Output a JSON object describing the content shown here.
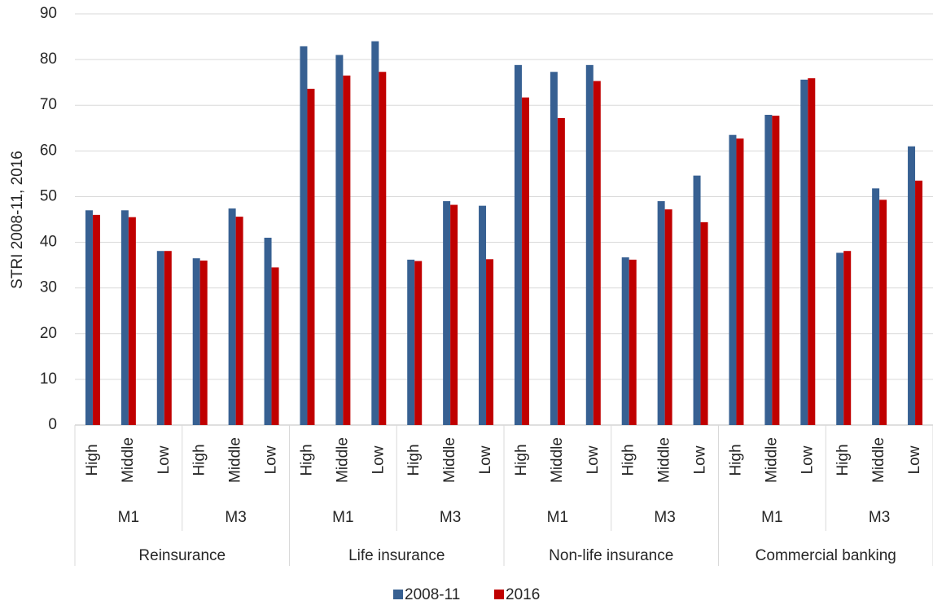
{
  "chart_data": {
    "type": "bar",
    "y_label": "STRI 2008-11, 2016",
    "categories": [
      "High",
      "Middle",
      "Low",
      "High",
      "Middle",
      "Low",
      "High",
      "Middle",
      "Low",
      "High",
      "Middle",
      "Low",
      "High",
      "Middle",
      "Low",
      "High",
      "Middle",
      "Low",
      "High",
      "Middle",
      "Low",
      "High",
      "Middle",
      "Low"
    ],
    "groups": [
      "M1",
      "M3",
      "M1",
      "M3",
      "M1",
      "M3",
      "M1",
      "M3"
    ],
    "sectors": [
      "Reinsurance",
      "Life insurance",
      "Non-life insurance",
      "Commercial banking"
    ],
    "series": [
      {
        "name": "2008-11",
        "color": "#376092",
        "values": [
          47,
          47,
          38.1,
          36.5,
          47.4,
          41,
          82.9,
          81,
          84,
          36.2,
          49,
          48,
          78.8,
          77.3,
          78.8,
          36.7,
          49,
          54.6,
          63.5,
          67.9,
          75.6,
          37.7,
          51.8,
          61
        ]
      },
      {
        "name": "2016",
        "color": "#c00000",
        "values": [
          46,
          45.5,
          38.1,
          36,
          45.6,
          34.5,
          73.6,
          76.5,
          77.3,
          35.9,
          48.2,
          36.3,
          71.7,
          67.2,
          75.3,
          36.2,
          47.2,
          44.4,
          62.7,
          67.7,
          75.9,
          38.1,
          49.3,
          53.5
        ]
      }
    ],
    "ylim": [
      0,
      90
    ],
    "yticks": [
      0,
      10,
      20,
      30,
      40,
      50,
      60,
      70,
      80,
      90
    ],
    "grid": true,
    "legend": "bottom"
  }
}
